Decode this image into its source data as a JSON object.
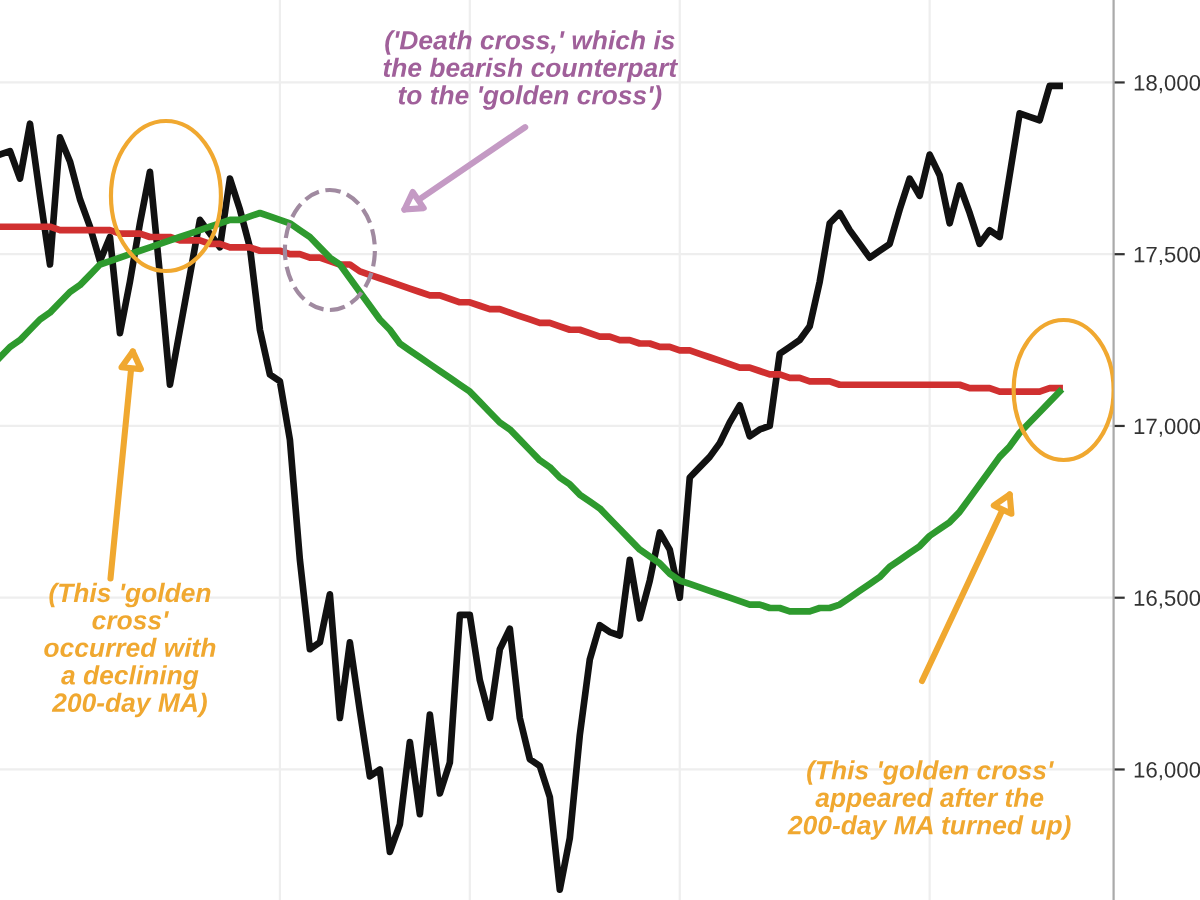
{
  "chart_data": {
    "type": "line",
    "categories": [
      null,
      null,
      null,
      null,
      null,
      null,
      null,
      null,
      null,
      null,
      null,
      null,
      null,
      null,
      null,
      null,
      null,
      null,
      null,
      null,
      null,
      null,
      null,
      null,
      null,
      null,
      null,
      null,
      null,
      null,
      null,
      null,
      null,
      null,
      null,
      null,
      null,
      null,
      null,
      null,
      null,
      null,
      null,
      null,
      null,
      null,
      null,
      null,
      null,
      null,
      null,
      null,
      null,
      null,
      null,
      null,
      null,
      null,
      null,
      null,
      null,
      null,
      null,
      null,
      null,
      null,
      null,
      null,
      null,
      null,
      null,
      null,
      null,
      null,
      null,
      null,
      null,
      null,
      null,
      null,
      null,
      null,
      null,
      null,
      null,
      null,
      null,
      null,
      null,
      null,
      null,
      null,
      null,
      null,
      null,
      null,
      null,
      null,
      null,
      null,
      null,
      null,
      null,
      null,
      null,
      null,
      null
    ],
    "series": [
      {
        "color": "#111111",
        "values": [
          17790,
          17800,
          17720,
          17880,
          17670,
          17470,
          17840,
          17770,
          17660,
          17580,
          17480,
          17550,
          17270,
          17420,
          17590,
          17740,
          17440,
          17120,
          17280,
          17440,
          17600,
          17560,
          17520,
          17720,
          17630,
          17520,
          17280,
          17150,
          17130,
          16960,
          16610,
          16350,
          16370,
          16510,
          16150,
          16370,
          16170,
          15980,
          16000,
          15760,
          15840,
          16080,
          15870,
          16160,
          15930,
          16020,
          16450,
          16450,
          16260,
          16150,
          16350,
          16410,
          16150,
          16030,
          16010,
          15920,
          15650,
          15800,
          16100,
          16320,
          16420,
          16400,
          16390,
          16610,
          16440,
          16550,
          16690,
          16640,
          16500,
          16850,
          16880,
          16910,
          16950,
          17010,
          17060,
          16970,
          16990,
          17000,
          17210,
          17230,
          17250,
          17290,
          17420,
          17590,
          17620,
          17570,
          17530,
          17490,
          17510,
          17530,
          17630,
          17720,
          17670,
          17790,
          17730,
          17590,
          17700,
          17620,
          17530,
          17570,
          17550,
          17730,
          17910,
          17900,
          17890,
          17990,
          17990
        ]
      },
      {
        "color": "#d03030",
        "values": [
          17580,
          17580,
          17580,
          17580,
          17580,
          17580,
          17570,
          17570,
          17570,
          17570,
          17570,
          17570,
          17560,
          17560,
          17560,
          17550,
          17550,
          17550,
          17540,
          17540,
          17540,
          17530,
          17530,
          17520,
          17520,
          17520,
          17510,
          17510,
          17510,
          17500,
          17500,
          17490,
          17490,
          17480,
          17470,
          17470,
          17450,
          17440,
          17430,
          17420,
          17410,
          17400,
          17390,
          17380,
          17380,
          17370,
          17360,
          17360,
          17350,
          17340,
          17340,
          17330,
          17320,
          17310,
          17300,
          17300,
          17290,
          17280,
          17280,
          17270,
          17260,
          17260,
          17250,
          17250,
          17240,
          17240,
          17230,
          17230,
          17220,
          17220,
          17210,
          17200,
          17190,
          17180,
          17170,
          17170,
          17160,
          17150,
          17150,
          17140,
          17140,
          17130,
          17130,
          17130,
          17120,
          17120,
          17120,
          17120,
          17120,
          17120,
          17120,
          17120,
          17120,
          17120,
          17120,
          17120,
          17120,
          17110,
          17110,
          17110,
          17100,
          17100,
          17100,
          17100,
          17100,
          17110,
          17110
        ]
      },
      {
        "color": "#2e9a2e",
        "values": [
          17200,
          17230,
          17250,
          17280,
          17310,
          17330,
          17360,
          17390,
          17410,
          17440,
          17470,
          17480,
          17490,
          17500,
          17510,
          17520,
          17530,
          17540,
          17550,
          17560,
          17570,
          17580,
          17590,
          17600,
          17600,
          17610,
          17620,
          17610,
          17600,
          17590,
          17570,
          17550,
          17520,
          17490,
          17470,
          17430,
          17390,
          17350,
          17310,
          17280,
          17240,
          17220,
          17200,
          17180,
          17160,
          17140,
          17120,
          17100,
          17070,
          17040,
          17010,
          16990,
          16960,
          16930,
          16900,
          16880,
          16850,
          16830,
          16800,
          16780,
          16760,
          16730,
          16700,
          16670,
          16640,
          16620,
          16600,
          16570,
          16550,
          16540,
          16530,
          16520,
          16510,
          16500,
          16490,
          16480,
          16480,
          16470,
          16470,
          16460,
          16460,
          16460,
          16470,
          16470,
          16480,
          16500,
          16520,
          16540,
          16560,
          16590,
          16610,
          16630,
          16650,
          16680,
          16700,
          16720,
          16750,
          16790,
          16830,
          16870,
          16910,
          16940,
          16980,
          17010,
          17040,
          17070,
          17100
        ]
      }
    ],
    "ylim": [
      15620,
      18240
    ],
    "yticks": [
      {
        "value": 16000,
        "label": "16,000"
      },
      {
        "value": 16500,
        "label": "16,500"
      },
      {
        "value": 17000,
        "label": "17,000"
      },
      {
        "value": 17500,
        "label": "17,500"
      },
      {
        "value": 18000,
        "label": "18,000"
      }
    ],
    "tick_labels": "y",
    "grid": true,
    "legend": false,
    "marker": "none",
    "line_style": "solid",
    "annotations": [
      "(This 'golden\ncross'\noccurred with\na declining\n200-day MA)",
      "('Death cross,' which is\nthe bearish counterpart\nto the 'golden cross')",
      "(This 'golden cross'\nappeared after the\n200-day MA turned up)"
    ]
  }
}
